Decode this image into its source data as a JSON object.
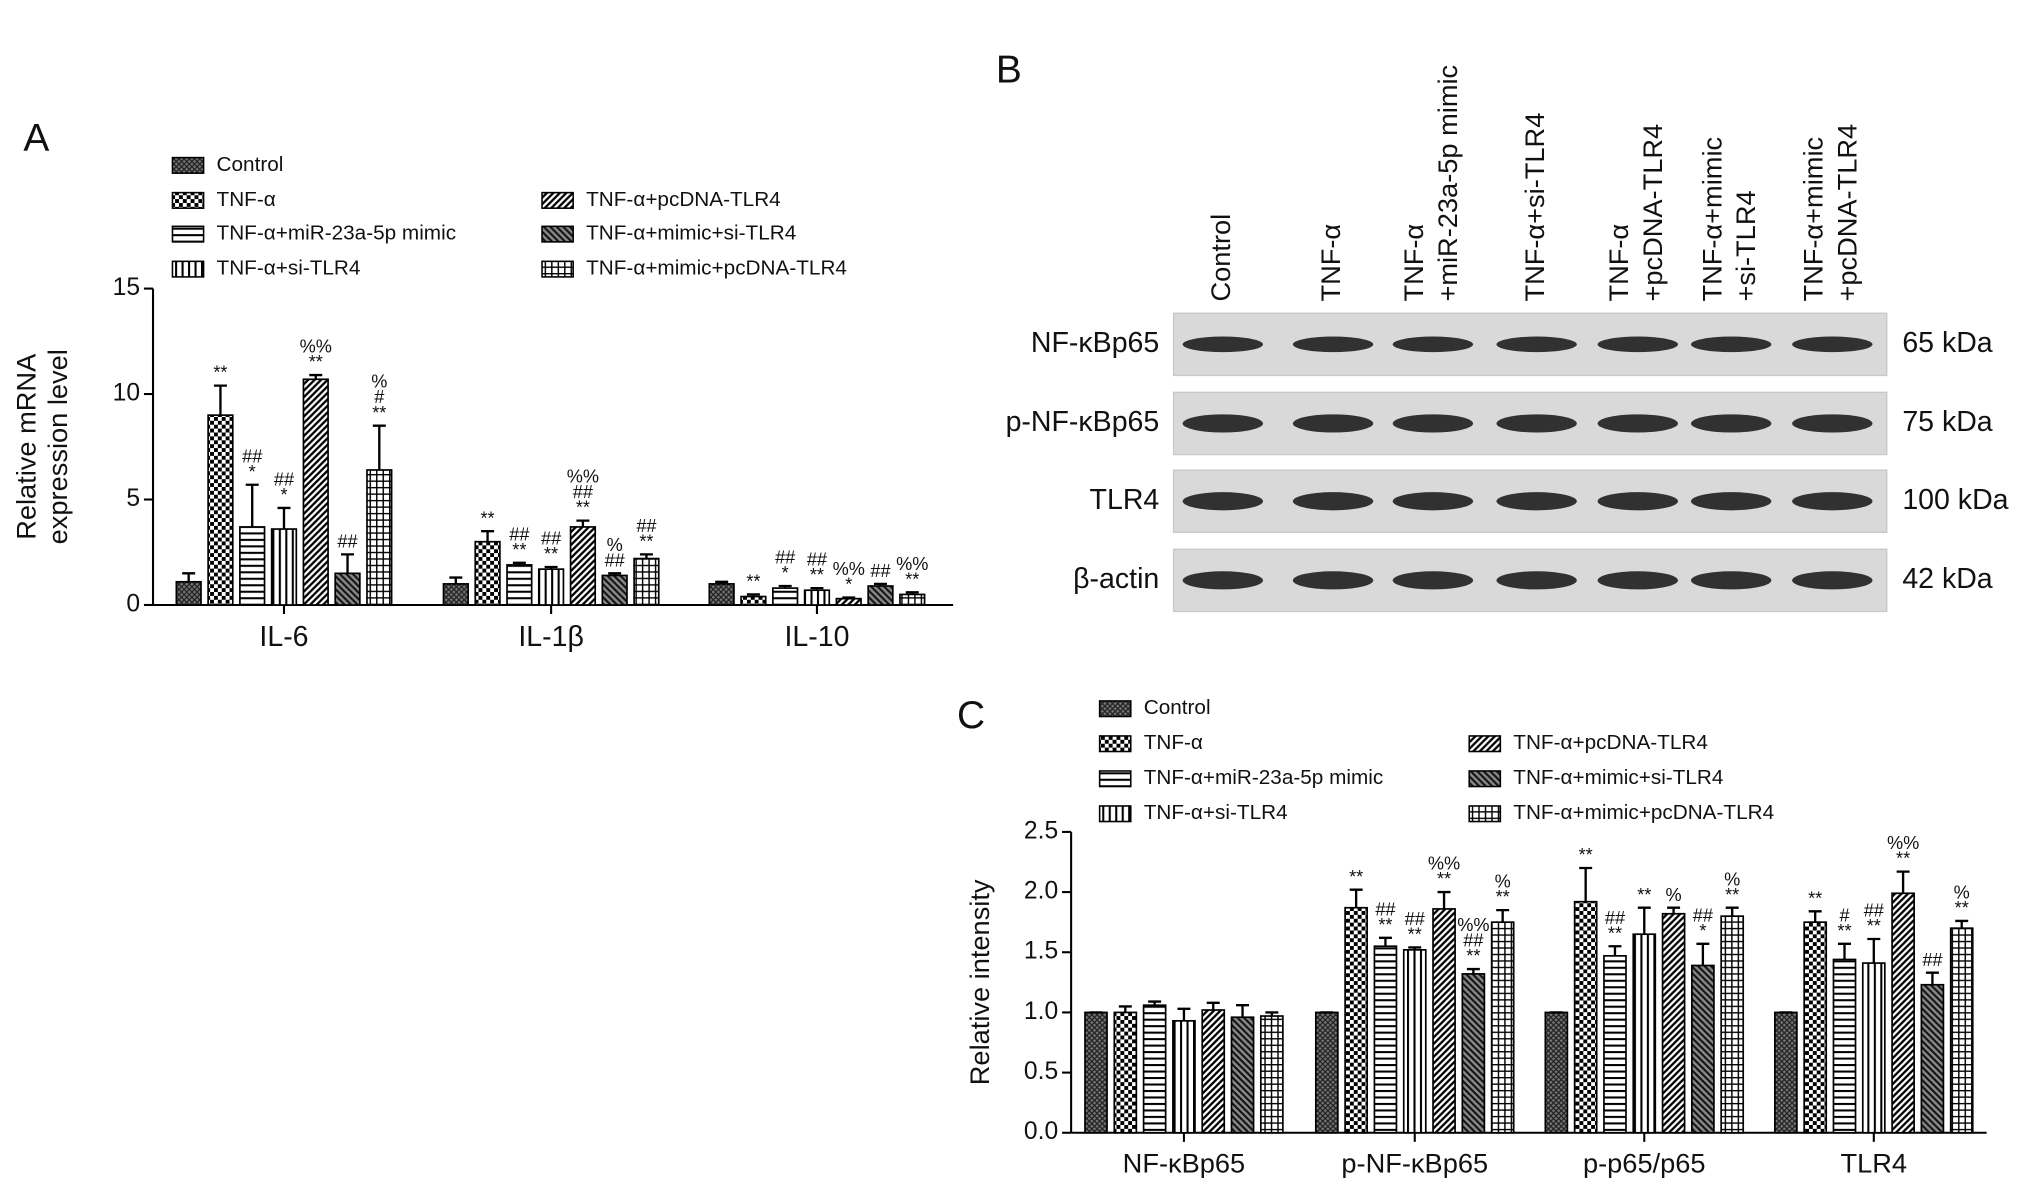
{
  "chart_data": [
    {
      "type": "bar",
      "panel": "A",
      "ylabel": [
        "Relative mRNA",
        "expression level"
      ],
      "categories": [
        "IL-6",
        "IL-1β",
        "IL-10"
      ],
      "ylim": [
        0,
        15
      ],
      "yticks": [
        0,
        5,
        10,
        15
      ],
      "series": [
        {
          "name": "Control",
          "pattern": "dense",
          "color": "#000000",
          "values": [
            1.1,
            1.0,
            1.0
          ],
          "errors": [
            0.4,
            0.3,
            0.1
          ],
          "annotations": [
            [],
            [],
            []
          ]
        },
        {
          "name": "TNF-α",
          "pattern": "checker",
          "color": "#000000",
          "values": [
            9.0,
            3.0,
            0.4
          ],
          "errors": [
            1.4,
            0.5,
            0.1
          ],
          "annotations": [
            [
              "**"
            ],
            [
              "**"
            ],
            [
              "**"
            ]
          ]
        },
        {
          "name": "TNF-α+miR-23a-5p mimic",
          "pattern": "hlines",
          "color": "#000000",
          "values": [
            3.7,
            1.9,
            0.8
          ],
          "errors": [
            2.0,
            0.1,
            0.1
          ],
          "annotations": [
            [
              "##",
              "*"
            ],
            [
              "##",
              "**"
            ],
            [
              "##",
              "*"
            ]
          ]
        },
        {
          "name": "TNF-α+si-TLR4",
          "pattern": "vlines",
          "color": "#000000",
          "values": [
            3.6,
            1.7,
            0.7
          ],
          "errors": [
            1.0,
            0.1,
            0.1
          ],
          "annotations": [
            [
              "##",
              "*"
            ],
            [
              "##",
              "**"
            ],
            [
              "##",
              "**"
            ]
          ]
        },
        {
          "name": "TNF-α+pcDNA-TLR4",
          "pattern": "diag",
          "color": "#000000",
          "values": [
            10.7,
            3.7,
            0.3
          ],
          "errors": [
            0.2,
            0.3,
            0.05
          ],
          "annotations": [
            [
              "%%",
              "**"
            ],
            [
              "%%",
              "##",
              "**"
            ],
            [
              "%%",
              "*"
            ]
          ]
        },
        {
          "name": "TNF-α+mimic+si-TLR4",
          "pattern": "diag2",
          "color": "#000000",
          "values": [
            1.5,
            1.4,
            0.9
          ],
          "errors": [
            0.9,
            0.1,
            0.1
          ],
          "annotations": [
            [
              "##"
            ],
            [
              "%",
              "##"
            ],
            [
              "##"
            ]
          ]
        },
        {
          "name": "TNF-α+mimic+pcDNA-TLR4",
          "pattern": "grid",
          "color": "#000000",
          "values": [
            6.4,
            2.2,
            0.5
          ],
          "errors": [
            2.1,
            0.2,
            0.1
          ],
          "annotations": [
            [
              "%",
              "#",
              "**"
            ],
            [
              "##",
              "**"
            ],
            [
              "%%",
              "**"
            ]
          ]
        }
      ]
    },
    {
      "type": "bar",
      "panel": "C",
      "ylabel": [
        "Relative intensity"
      ],
      "categories": [
        "NF-κBp65",
        "p-NF-κBp65",
        "p-p65/p65",
        "TLR4"
      ],
      "ylim": [
        0,
        2.5
      ],
      "yticks": [
        {
          "value": 0,
          "label": "0.0"
        },
        0.5,
        {
          "value": 1,
          "label": "1.0"
        },
        1.5,
        {
          "value": 2,
          "label": "2.0"
        },
        2.5
      ],
      "series": [
        {
          "name": "Control",
          "pattern": "dense",
          "color": "#000000",
          "values": [
            1.0,
            1.0,
            1.0,
            1.0
          ],
          "errors": [
            0,
            0,
            0,
            0
          ],
          "annotations": [
            [],
            [],
            [],
            []
          ]
        },
        {
          "name": "TNF-α",
          "pattern": "checker",
          "color": "#000000",
          "values": [
            1.0,
            1.87,
            1.92,
            1.75
          ],
          "errors": [
            0.05,
            0.15,
            0.28,
            0.09
          ],
          "annotations": [
            [],
            [
              "**"
            ],
            [
              "**"
            ],
            [
              "**"
            ]
          ]
        },
        {
          "name": "TNF-α+miR-23a-5p mimic",
          "pattern": "hlines",
          "color": "#000000",
          "values": [
            1.06,
            1.55,
            1.47,
            1.44
          ],
          "errors": [
            0.03,
            0.07,
            0.08,
            0.13
          ],
          "annotations": [
            [],
            [
              "##",
              "**"
            ],
            [
              "##",
              "**"
            ],
            [
              "#",
              "**"
            ]
          ]
        },
        {
          "name": "TNF-α+si-TLR4",
          "pattern": "vlines",
          "color": "#000000",
          "values": [
            0.93,
            1.52,
            1.65,
            1.41
          ],
          "errors": [
            0.1,
            0.02,
            0.22,
            0.2
          ],
          "annotations": [
            [],
            [
              "##",
              "**"
            ],
            [
              "**"
            ],
            [
              "##",
              "**"
            ]
          ]
        },
        {
          "name": "TNF-α+pcDNA-TLR4",
          "pattern": "diag",
          "color": "#000000",
          "values": [
            1.02,
            1.86,
            1.82,
            1.99
          ],
          "errors": [
            0.06,
            0.14,
            0.05,
            0.18
          ],
          "annotations": [
            [],
            [
              "%%",
              "**"
            ],
            [
              "%"
            ],
            [
              "%%",
              "**"
            ]
          ]
        },
        {
          "name": "TNF-α+mimic+si-TLR4",
          "pattern": "diag2",
          "color": "#000000",
          "values": [
            0.96,
            1.32,
            1.39,
            1.23
          ],
          "errors": [
            0.1,
            0.04,
            0.18,
            0.1
          ],
          "annotations": [
            [],
            [
              "%%",
              "##",
              "**"
            ],
            [
              "##",
              "*"
            ],
            [
              "##"
            ]
          ]
        },
        {
          "name": "TNF-α+mimic+pcDNA-TLR4",
          "pattern": "grid",
          "color": "#000000",
          "values": [
            0.97,
            1.75,
            1.8,
            1.7
          ],
          "errors": [
            0.03,
            0.1,
            0.07,
            0.06
          ],
          "annotations": [
            [],
            [
              "%",
              "**"
            ],
            [
              "%",
              "**"
            ],
            [
              "%",
              "**"
            ]
          ]
        }
      ]
    }
  ],
  "blot": {
    "panel": "B",
    "lanes": [
      [
        "Control"
      ],
      [
        "TNF-α"
      ],
      [
        "TNF-α",
        "+miR-23a-5p mimic"
      ],
      [
        "TNF-α+si-TLR4"
      ],
      [
        "TNF-α",
        "+pcDNA-TLR4"
      ],
      [
        "TNF-α+mimic",
        "+si-TLR4"
      ],
      [
        "TNF-α+mimic",
        "+pcDNA-TLR4"
      ]
    ],
    "rows": [
      {
        "protein": "NF-κBp65",
        "size": "65 kDa"
      },
      {
        "protein": "p-NF-κBp65",
        "size": "75 kDa"
      },
      {
        "protein": "TLR4",
        "size": "100 kDa"
      },
      {
        "protein": "β-actin",
        "size": "42 kDa"
      }
    ]
  }
}
